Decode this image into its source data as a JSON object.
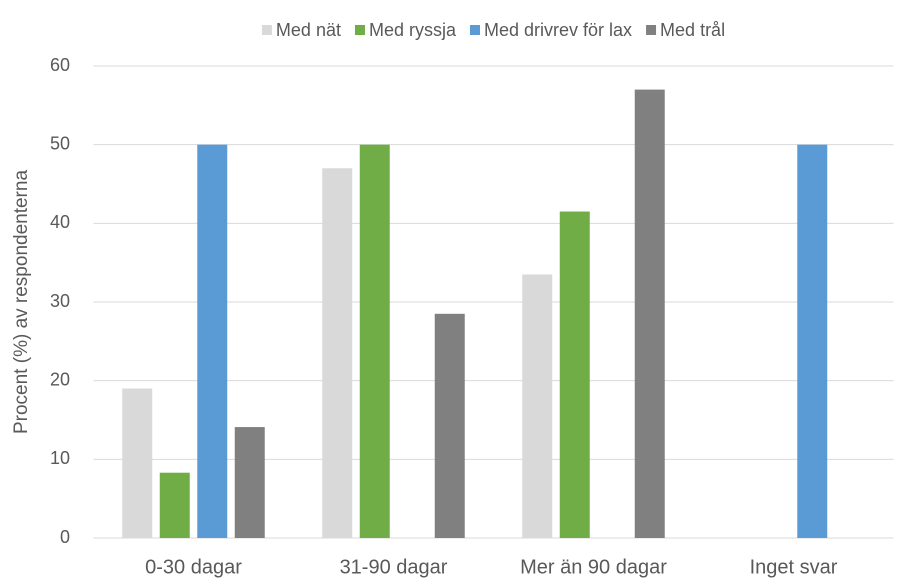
{
  "chart_data": {
    "type": "bar",
    "y_label": "Procent (%) av respondenterna",
    "categories": [
      "0-30 dagar",
      "31-90 dagar",
      "Mer än 90 dagar",
      "Inget svar"
    ],
    "series": [
      {
        "name": "Med nät",
        "color": "#d9d9d9",
        "values": [
          19,
          47,
          33.5,
          null
        ]
      },
      {
        "name": "Med ryssja",
        "color": "#70ad47",
        "values": [
          8.3,
          50,
          41.5,
          null
        ]
      },
      {
        "name": "Med drivrev för lax",
        "color": "#5b9bd5",
        "values": [
          50,
          null,
          null,
          50
        ]
      },
      {
        "name": "Med trål",
        "color": "#808080",
        "values": [
          14.1,
          28.5,
          57,
          null
        ]
      }
    ],
    "ylim": [
      0,
      60
    ],
    "yticks": [
      0,
      10,
      20,
      30,
      40,
      50,
      60
    ],
    "grid": true,
    "legend": "top"
  }
}
